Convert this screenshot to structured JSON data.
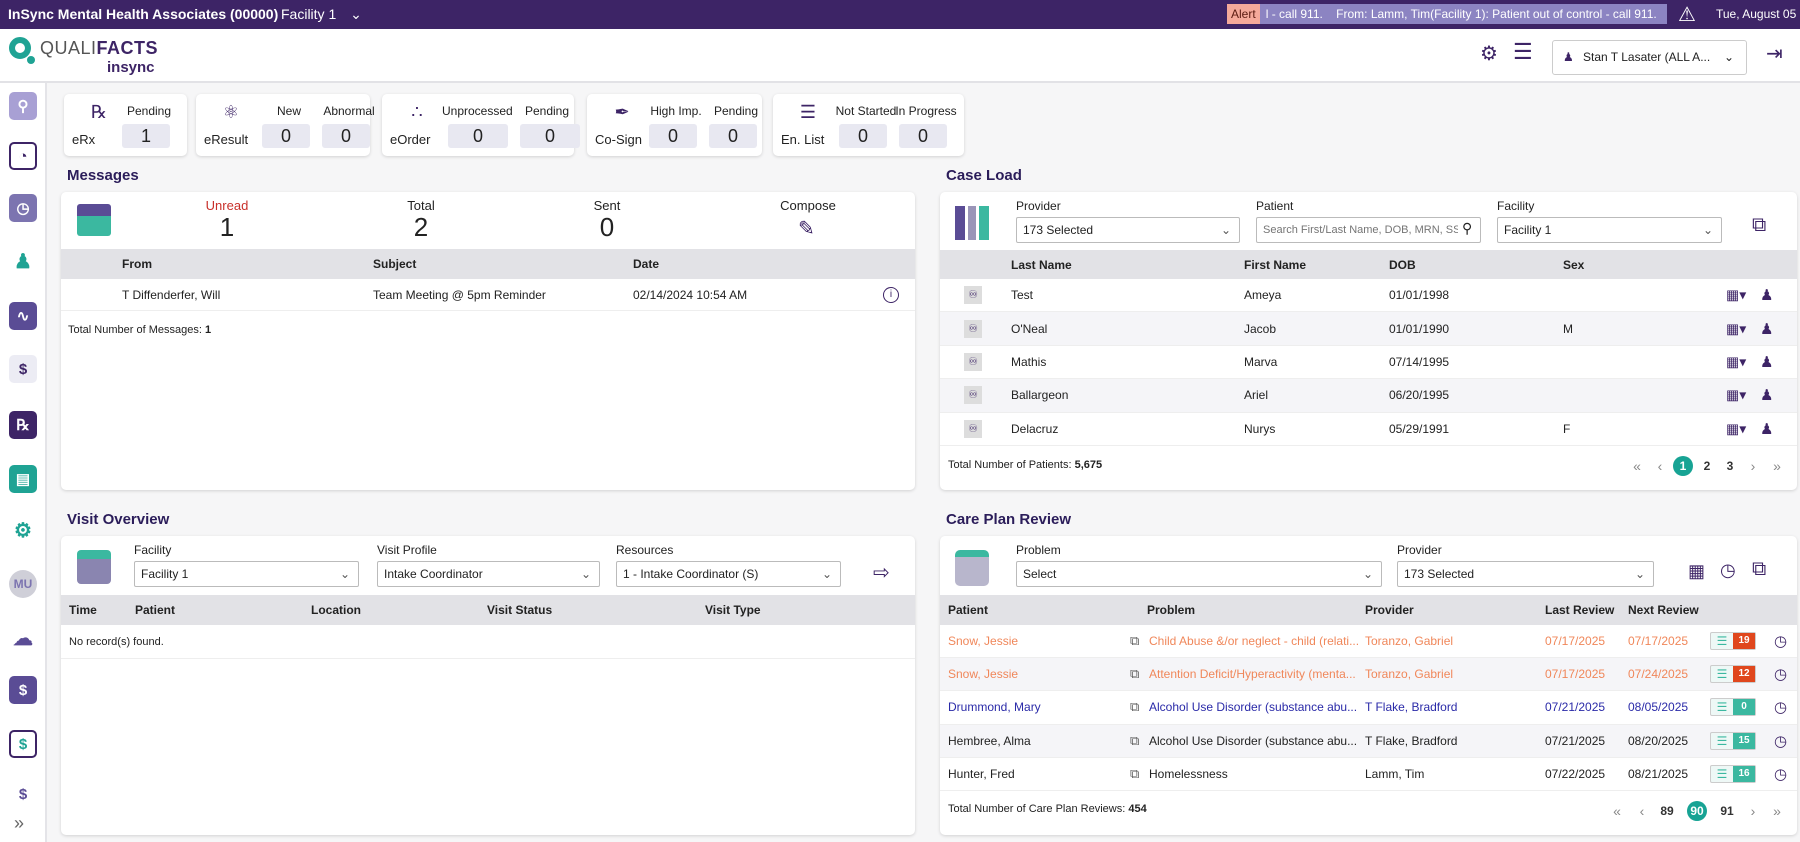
{
  "topbar": {
    "org": "InSync Mental Health Associates (00000)",
    "facility": "Facility 1",
    "alert_badge": "Alert",
    "alert_text": "l - call 911.    From: Lamm, Tim(Facility 1): Patient out of control - call 911.",
    "date": "Tue, August 05"
  },
  "header": {
    "logo_main": "QUALI",
    "logo_bold": "FACTS",
    "logo_sub": "insync",
    "user": "Stan T Lasater (ALL A..."
  },
  "sidebar": {
    "mu_label": "MU"
  },
  "summary": [
    {
      "name": "eRx",
      "icon": "rx-bottle",
      "stats": [
        {
          "label": "Pending",
          "value": "1"
        }
      ]
    },
    {
      "name": "eResult",
      "icon": "lab-flask",
      "stats": [
        {
          "label": "New",
          "value": "0"
        },
        {
          "label": "Abnormal",
          "value": "0"
        }
      ]
    },
    {
      "name": "eOrder",
      "icon": "network-nodes",
      "stats": [
        {
          "label": "Unprocessed",
          "value": "0"
        },
        {
          "label": "Pending",
          "value": "0"
        }
      ]
    },
    {
      "name": "Co-Sign",
      "icon": "pen",
      "stats": [
        {
          "label": "High Imp.",
          "value": "0"
        },
        {
          "label": "Pending",
          "value": "0"
        }
      ]
    },
    {
      "name": "En. List",
      "icon": "checklist",
      "stats": [
        {
          "label": "Not Started",
          "value": "0"
        },
        {
          "label": "In Progress",
          "value": "0"
        }
      ]
    }
  ],
  "messages": {
    "title": "Messages",
    "unread_label": "Unread",
    "unread": "1",
    "total_label": "Total",
    "total": "2",
    "sent_label": "Sent",
    "sent": "0",
    "compose_label": "Compose",
    "columns": [
      "From",
      "Subject",
      "Date"
    ],
    "rows": [
      {
        "from": "T Diffenderfer, Will",
        "subject": "Team Meeting @ 5pm Reminder",
        "date": "02/14/2024 10:54 AM"
      }
    ],
    "footer_label": "Total Number of Messages:",
    "footer_count": "1"
  },
  "caseload": {
    "title": "Case Load",
    "provider_label": "Provider",
    "provider_value": "173 Selected",
    "patient_label": "Patient",
    "patient_placeholder": "Search First/Last Name, DOB, MRN, SSN",
    "facility_label": "Facility",
    "facility_value": "Facility 1",
    "columns": [
      "Last Name",
      "First Name",
      "DOB",
      "Sex"
    ],
    "rows": [
      {
        "last": "Test",
        "first": "Ameya",
        "dob": "01/01/1998",
        "sex": ""
      },
      {
        "last": "O'Neal",
        "first": "Jacob",
        "dob": "01/01/1990",
        "sex": "M"
      },
      {
        "last": "Mathis",
        "first": "Marva",
        "dob": "07/14/1995",
        "sex": ""
      },
      {
        "last": "Ballargeon",
        "first": "Ariel",
        "dob": "06/20/1995",
        "sex": ""
      },
      {
        "last": "Delacruz",
        "first": "Nurys",
        "dob": "05/29/1991",
        "sex": "F"
      }
    ],
    "footer_label": "Total Number of Patients:",
    "footer_count": "5,675",
    "pages": [
      "1",
      "2",
      "3"
    ],
    "active_page": "1"
  },
  "visit": {
    "title": "Visit Overview",
    "facility_label": "Facility",
    "facility_value": "Facility 1",
    "profile_label": "Visit Profile",
    "profile_value": "Intake Coordinator",
    "resources_label": "Resources",
    "resources_value": "1 - Intake Coordinator (S)",
    "columns": [
      "Time",
      "Patient",
      "Location",
      "Visit Status",
      "Visit Type"
    ],
    "empty": "No record(s) found."
  },
  "careplan": {
    "title": "Care Plan Review",
    "problem_label": "Problem",
    "problem_value": "Select",
    "provider_label": "Provider",
    "provider_value": "173 Selected",
    "columns": [
      "Patient",
      "Problem",
      "Provider",
      "Last Review",
      "Next Review"
    ],
    "rows": [
      {
        "patient": "Snow, Jessie",
        "problem": "Child Abuse &/or neglect - child (relati...",
        "provider": "Toranzo, Gabriel",
        "last": "07/17/2025",
        "next": "07/17/2025",
        "count": "19",
        "status": "overdue"
      },
      {
        "patient": "Snow, Jessie",
        "problem": "Attention Deficit/Hyperactivity (menta...",
        "provider": "Toranzo, Gabriel",
        "last": "07/17/2025",
        "next": "07/24/2025",
        "count": "12",
        "status": "overdue"
      },
      {
        "patient": "Drummond, Mary",
        "problem": "Alcohol Use Disorder (substance abu...",
        "provider": "T Flake, Bradford",
        "last": "07/21/2025",
        "next": "08/05/2025",
        "count": "0",
        "status": "due"
      },
      {
        "patient": "Hembree, Alma",
        "problem": "Alcohol Use Disorder (substance abu...",
        "provider": "T Flake, Bradford",
        "last": "07/21/2025",
        "next": "08/20/2025",
        "count": "15",
        "status": "normal"
      },
      {
        "patient": "Hunter, Fred",
        "problem": "Homelessness",
        "provider": "Lamm, Tim",
        "last": "07/22/2025",
        "next": "08/21/2025",
        "count": "16",
        "status": "normal"
      }
    ],
    "footer_label": "Total Number of Care Plan Reviews:",
    "footer_count": "454",
    "pages": [
      "89",
      "90",
      "91"
    ],
    "active_page": "90"
  },
  "colors": {
    "brand": "#3d2466",
    "accent": "#17a394",
    "overdue": "#f0875a",
    "due": "#2a2aa8",
    "badge_overdue": "#e0471d",
    "badge_ok": "#3bb8a0"
  }
}
